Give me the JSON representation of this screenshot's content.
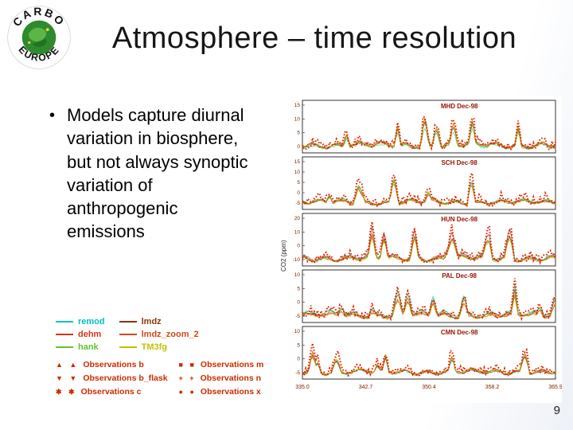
{
  "slide": {
    "title": "Atmosphere – time resolution",
    "bullet_glyph": "•",
    "bullet": "Models capture diurnal variation in biosphere, but not always synoptic variation of anthropogenic emissions",
    "page_number": "9",
    "logo": {
      "top_text": "CARBO",
      "bottom_text": "EUROPE"
    }
  },
  "legend": {
    "models": [
      {
        "label": "remod",
        "color": "#00c2c2"
      },
      {
        "label": "dehm",
        "color": "#d43418"
      },
      {
        "label": "hank",
        "color": "#63c231"
      },
      {
        "label": "lmdz",
        "color": "#8a3608"
      },
      {
        "label": "lmdz_zoom_2",
        "color": "#cc4a1c"
      },
      {
        "label": "TM3fg",
        "color": "#c2c200"
      }
    ],
    "observations_color": "#cc2a00",
    "observations": [
      {
        "marker": "▲",
        "label": "Observations b"
      },
      {
        "marker": "▼",
        "label": "Observations b_flask"
      },
      {
        "marker": "✱",
        "label": "Observations c"
      },
      {
        "marker": "■",
        "label": "Observations m"
      },
      {
        "marker": "+",
        "label": "Observations n"
      },
      {
        "marker": "●",
        "label": "Observations x"
      }
    ]
  },
  "chart_data": {
    "type": "line",
    "ylabel": "CO2 (ppm)",
    "x_ticks": [
      "335.0",
      "342.7",
      "350.4",
      "358.2",
      "365.9"
    ],
    "note": "Five stacked station panels of noisy December 1998 CO2 time series; model lines (remod, dehm, hank, lmdz, lmdz_zoom_2, TM3fg) vs thick red dotted observations",
    "panels": [
      {
        "title": "MHD Dec-98",
        "y_ticks": [
          "15",
          "10",
          "5",
          "0"
        ]
      },
      {
        "title": "SCH Dec-98",
        "y_ticks": [
          "15",
          "10",
          "5",
          "0",
          "-5"
        ]
      },
      {
        "title": "HUN Dec-98",
        "y_ticks": [
          "20",
          "10",
          "0",
          "-10"
        ]
      },
      {
        "title": "PAL Dec-98",
        "y_ticks": [
          "10",
          "5",
          "0",
          "-5"
        ]
      },
      {
        "title": "CMN Dec-98",
        "y_ticks": [
          "10",
          "5",
          "0",
          "-5"
        ]
      }
    ],
    "series_names": [
      "remod",
      "dehm",
      "hank",
      "lmdz",
      "lmdz_zoom_2",
      "TM3fg",
      "observations"
    ],
    "title_color": "#991300",
    "tick_color": "#7a2200"
  }
}
